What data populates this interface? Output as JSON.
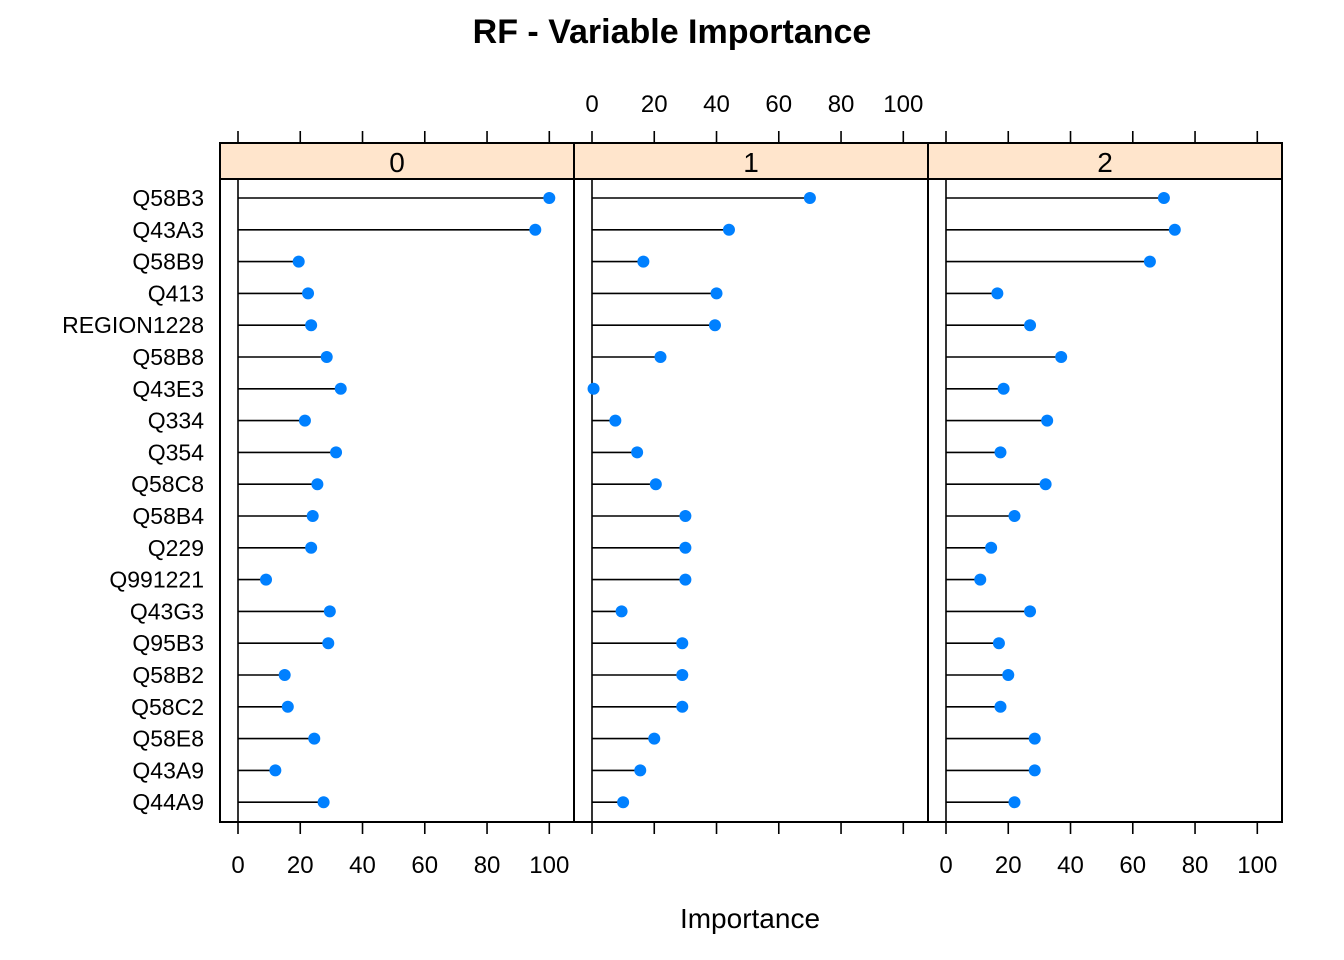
{
  "chart_data": {
    "type": "scatter",
    "title": "RF - Variable Importance",
    "xlabel": "Importance",
    "ylabel": "",
    "xlim": [
      0,
      100
    ],
    "ticks": [
      0,
      20,
      40,
      60,
      80,
      100
    ],
    "grid": false,
    "legend": "none",
    "colors": {
      "point": "#0080ff",
      "strip": "#ffe5cc",
      "line": "#000000"
    },
    "categories": [
      "Q58B3",
      "Q43A3",
      "Q58B9",
      "Q413",
      "REGION1228",
      "Q58B8",
      "Q43E3",
      "Q334",
      "Q354",
      "Q58C8",
      "Q58B4",
      "Q229",
      "Q991221",
      "Q43G3",
      "Q95B3",
      "Q58B2",
      "Q58C2",
      "Q58E8",
      "Q43A9",
      "Q44A9"
    ],
    "panels": [
      {
        "label": "0",
        "values": [
          100,
          95.5,
          19.5,
          22.5,
          23.5,
          28.5,
          33,
          21.5,
          31.5,
          25.5,
          24,
          23.5,
          9,
          29.5,
          29,
          15,
          16,
          24.5,
          12,
          27.5
        ]
      },
      {
        "label": "1",
        "values": [
          70,
          44,
          16.5,
          40,
          39.5,
          22,
          0.5,
          7.5,
          14.5,
          20.5,
          30,
          30,
          30,
          9.5,
          29,
          29,
          29,
          20,
          15.5,
          10
        ]
      },
      {
        "label": "2",
        "values": [
          70,
          73.5,
          65.5,
          16.5,
          27,
          37,
          18.5,
          32.5,
          17.5,
          32,
          22,
          14.5,
          11,
          27,
          17,
          20,
          17.5,
          28.5,
          28.5,
          22
        ]
      }
    ]
  }
}
